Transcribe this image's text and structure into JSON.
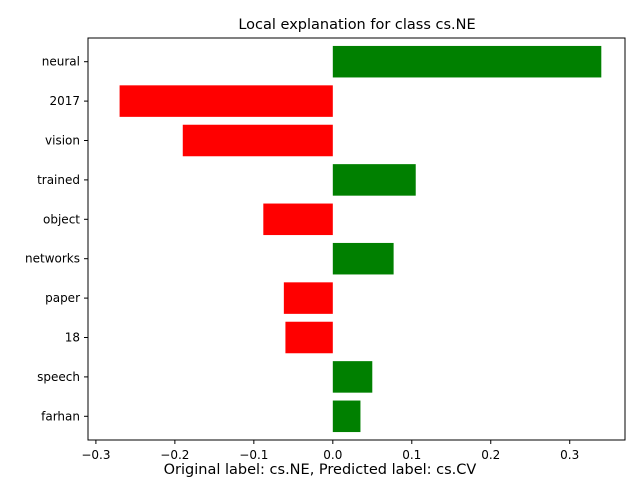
{
  "chart_data": {
    "type": "bar",
    "orientation": "horizontal",
    "title": "Local explanation for class cs.NE",
    "categories": [
      "neural",
      "2017",
      "vision",
      "trained",
      "object",
      "networks",
      "paper",
      "18",
      "speech",
      "farhan"
    ],
    "values": [
      0.34,
      -0.27,
      -0.19,
      0.105,
      -0.088,
      0.077,
      -0.062,
      -0.06,
      0.05,
      0.035
    ],
    "xlim": [
      -0.31,
      0.37
    ],
    "x_ticks": [
      -0.3,
      -0.2,
      -0.1,
      0.0,
      0.1,
      0.2,
      0.3
    ],
    "x_tick_labels": [
      "−0.3",
      "−0.2",
      "−0.1",
      "0.0",
      "0.1",
      "0.2",
      "0.3"
    ],
    "xlabel": "",
    "ylabel": "",
    "grid": false,
    "positive_color": "#008000",
    "negative_color": "#ff0000",
    "caption": "Original label: cs.NE, Predicted label: cs.CV"
  }
}
